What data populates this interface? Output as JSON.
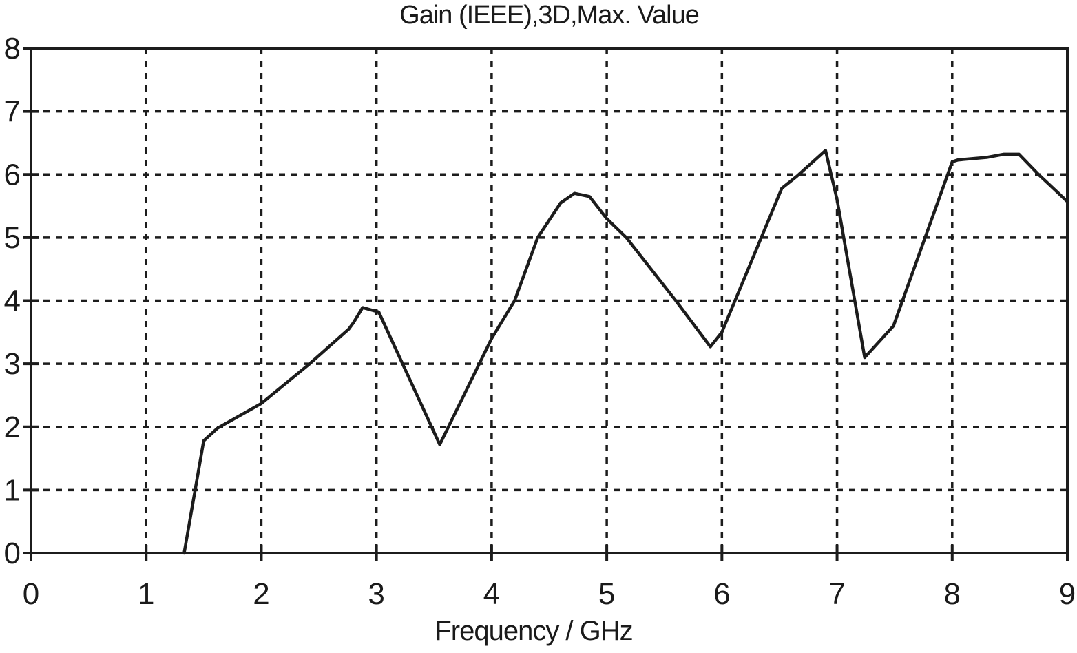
{
  "chart_data": {
    "type": "line",
    "title": "Gain (IEEE),3D,Max. Value",
    "xlabel": "Frequency / GHz",
    "ylabel": "",
    "xlim": [
      0,
      9
    ],
    "ylim": [
      0,
      8
    ],
    "x_ticks": [
      0,
      1,
      2,
      3,
      4,
      5,
      6,
      7,
      8,
      9
    ],
    "y_ticks": [
      0,
      1,
      2,
      3,
      4,
      5,
      6,
      7,
      8
    ],
    "grid": "dashed",
    "legend_position": "none",
    "colors": {
      "line": "#1c1c1c",
      "grid": "#1c1c1c",
      "border": "#1c1c1c",
      "text": "#1a1a1a",
      "background": "#ffffff"
    },
    "series": [
      {
        "name": "Gain (IEEE) 3D Max. Value",
        "points": [
          [
            1.33,
            0.0
          ],
          [
            1.5,
            1.78
          ],
          [
            1.62,
            1.98
          ],
          [
            2.0,
            2.37
          ],
          [
            2.42,
            3.0
          ],
          [
            2.76,
            3.55
          ],
          [
            2.8,
            3.65
          ],
          [
            2.88,
            3.89
          ],
          [
            3.02,
            3.82
          ],
          [
            3.55,
            1.72
          ],
          [
            4.0,
            3.4
          ],
          [
            4.2,
            4.0
          ],
          [
            4.4,
            5.0
          ],
          [
            4.6,
            5.55
          ],
          [
            4.72,
            5.7
          ],
          [
            4.85,
            5.65
          ],
          [
            5.0,
            5.3
          ],
          [
            5.17,
            5.0
          ],
          [
            5.6,
            4.0
          ],
          [
            5.9,
            3.27
          ],
          [
            6.0,
            3.5
          ],
          [
            6.52,
            5.78
          ],
          [
            6.65,
            5.97
          ],
          [
            6.9,
            6.38
          ],
          [
            7.0,
            5.6
          ],
          [
            7.24,
            3.1
          ],
          [
            7.49,
            3.6
          ],
          [
            8.0,
            6.2
          ],
          [
            8.05,
            6.23
          ],
          [
            8.3,
            6.27
          ],
          [
            8.45,
            6.32
          ],
          [
            8.58,
            6.32
          ],
          [
            8.75,
            6.0
          ],
          [
            9.0,
            5.57
          ]
        ]
      }
    ]
  }
}
